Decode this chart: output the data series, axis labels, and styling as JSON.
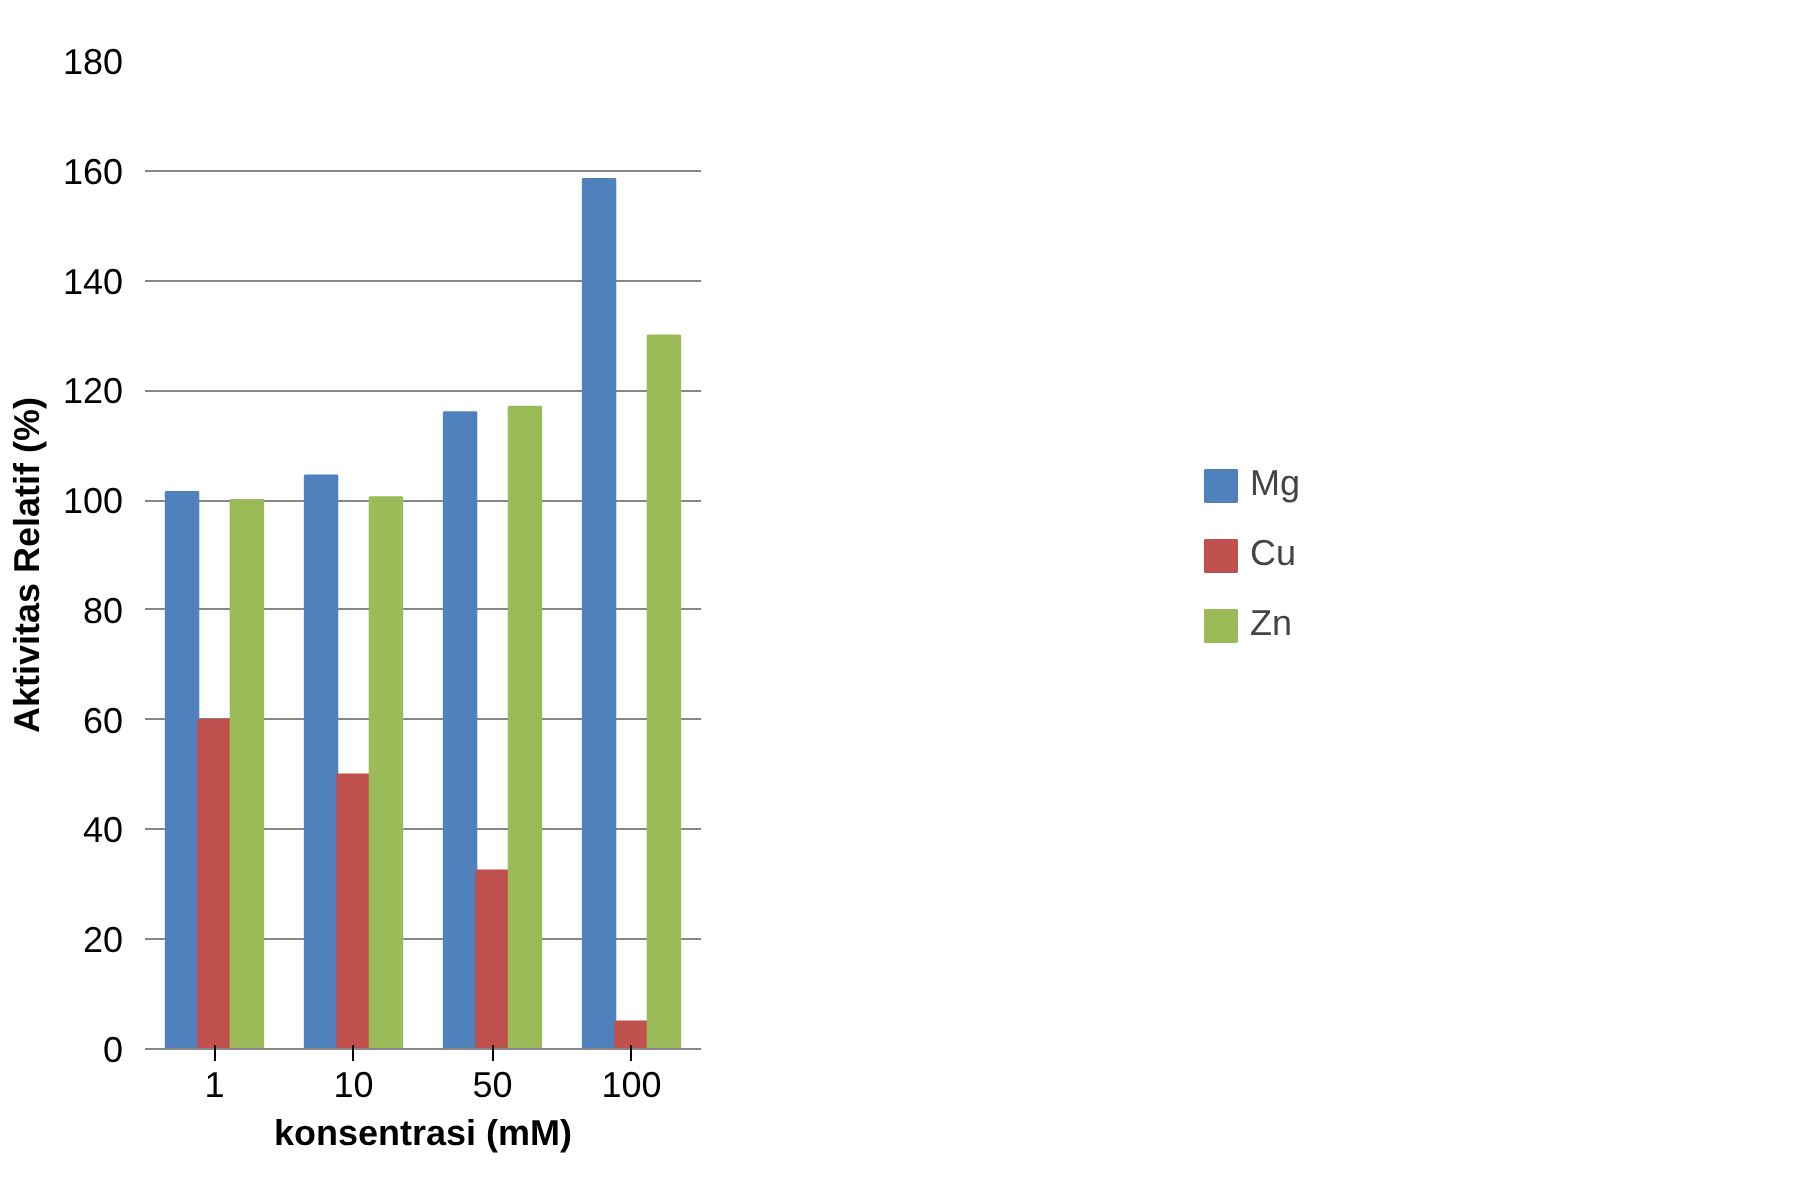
{
  "chart_data": {
    "type": "bar",
    "xlabel": "konsentrasi (mM)",
    "ylabel": "Aktivitas  Relatif  (%)",
    "categories": [
      "1",
      "10",
      "50",
      "100"
    ],
    "series": [
      {
        "name": "Mg",
        "color": "#4f81bd",
        "values": [
          101.5,
          104.5,
          116,
          158.5
        ]
      },
      {
        "name": "Cu",
        "color": "#c0504d",
        "values": [
          60,
          50,
          32.5,
          5
        ]
      },
      {
        "name": "Zn",
        "color": "#9bbb59",
        "values": [
          100,
          100.5,
          117,
          130
        ]
      }
    ],
    "ylim": [
      0,
      180
    ],
    "yticks": [
      0,
      20,
      40,
      60,
      80,
      100,
      120,
      140,
      160,
      180
    ],
    "grid": "y",
    "legend": "right"
  }
}
